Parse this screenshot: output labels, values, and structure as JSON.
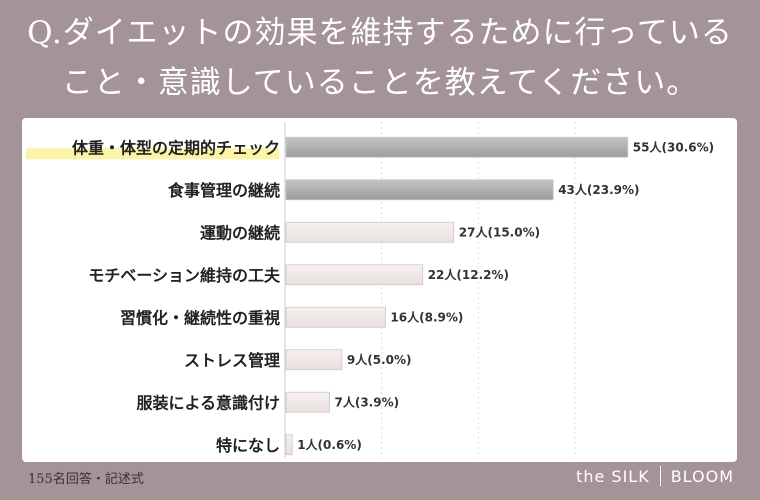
{
  "title_line1": "Q.ダイエットの効果を維持するために行っている",
  "title_line2": "こと・意識していることを教えてください。",
  "footer_note": "155名回答・記述式",
  "brand": {
    "left": "the SILK",
    "right": "BLOOM"
  },
  "colors": {
    "background": "#a59497",
    "highlight": "#fbf3a6",
    "bar_dark": "#a8a8a8",
    "bar_light": "#f1ebea"
  },
  "chart_data": {
    "type": "bar",
    "orientation": "horizontal",
    "title": "Q.ダイエットの効果を維持するために行っていること・意識していることを教えてください。",
    "categories": [
      "体重・体型の定期的チェック",
      "食事管理の継続",
      "運動の継続",
      "モチベーション維持の工夫",
      "習慣化・継続性の重視",
      "ストレス管理",
      "服装による意識付け",
      "特になし"
    ],
    "values": [
      55,
      43,
      27,
      22,
      16,
      9,
      7,
      1
    ],
    "value_labels": [
      "55人(30.6%)",
      "43人(23.9%)",
      "27人(15.0%)",
      "22人(12.2%)",
      "16人(8.9%)",
      "9人(5.0%)",
      "7人(3.9%)",
      "1人(0.6%)"
    ],
    "highlighted_category": "体重・体型の定期的チェック",
    "xlim": [
      0,
      56
    ],
    "grid": true
  }
}
